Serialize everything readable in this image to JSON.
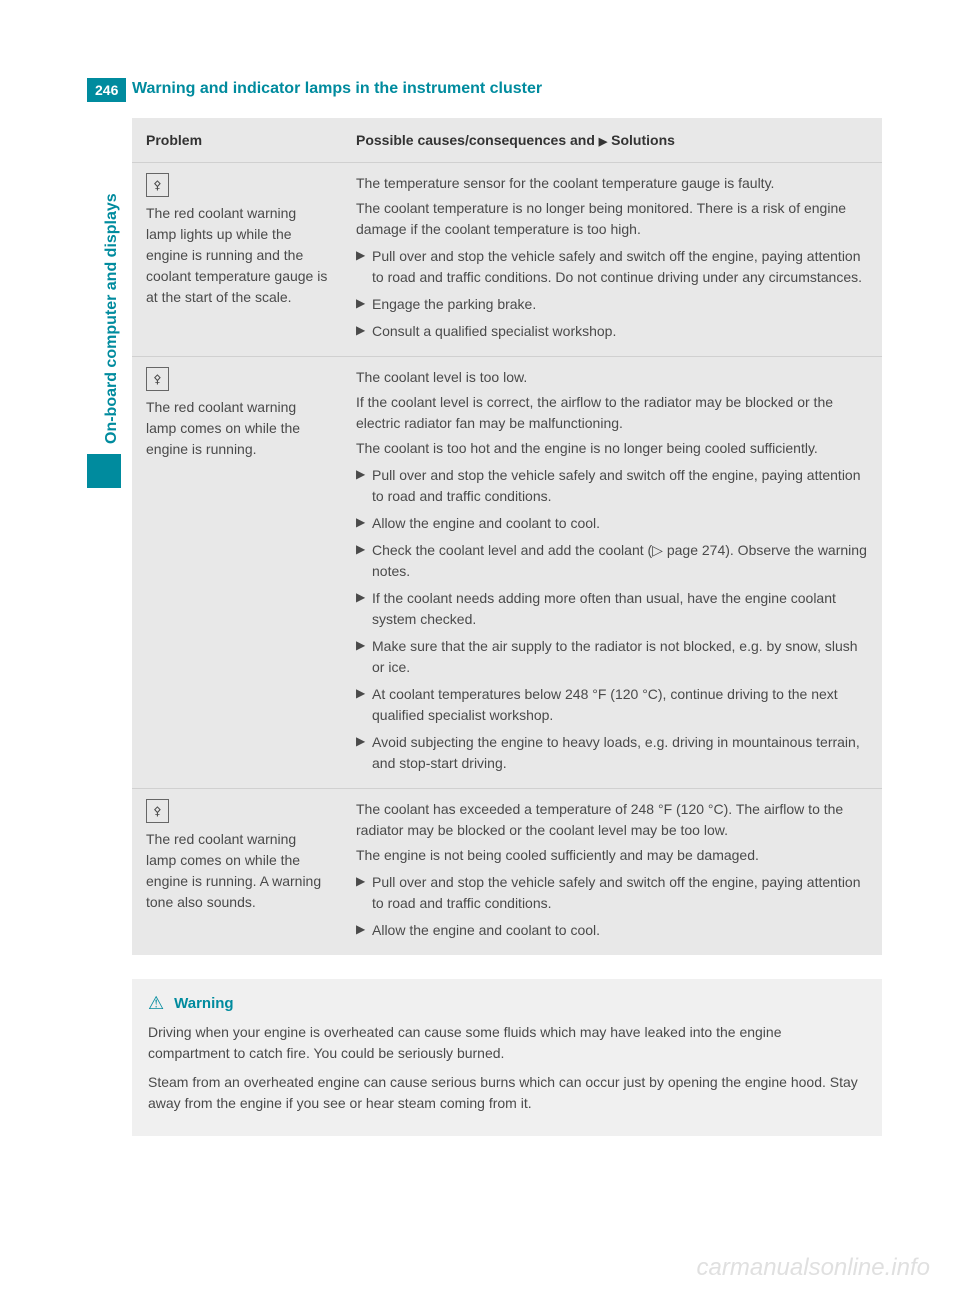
{
  "page_number": "246",
  "header_title": "Warning and indicator lamps in the instrument cluster",
  "side_tab": "On-board computer and displays",
  "watermark": "carmanualsonline.info",
  "table": {
    "header_problem": "Problem",
    "header_solutions_prefix": "Possible causes/consequences and ",
    "header_solutions_suffix": " Solutions",
    "solutions_marker": "▶",
    "rows": [
      {
        "icon_label": "coolant-icon",
        "icon_glyph": "⚴",
        "problem": "The red coolant warning lamp lights up while the engine is running and the coolant temperature gauge is at the start of the scale.",
        "paragraphs": [
          "The temperature sensor for the coolant temperature gauge is faulty.",
          "The coolant temperature is no longer being monitored. There is a risk of engine damage if the coolant temperature is too high."
        ],
        "bullets": [
          "Pull over and stop the vehicle safely and switch off the engine, paying attention to road and traffic conditions. Do not continue driving under any circumstances.",
          "Engage the parking brake.",
          "Consult a qualified specialist workshop."
        ]
      },
      {
        "icon_label": "coolant-icon",
        "icon_glyph": "⚴",
        "problem": "The red coolant warning lamp comes on while the engine is running.",
        "paragraphs": [
          "The coolant level is too low.",
          "If the coolant level is correct, the airflow to the radiator may be blocked or the electric radiator fan may be malfunctioning.",
          "The coolant is too hot and the engine is no longer being cooled sufficiently."
        ],
        "bullets": [
          "Pull over and stop the vehicle safely and switch off the engine, paying attention to road and traffic conditions.",
          "Allow the engine and coolant to cool.",
          "Check the coolant level and add the coolant (▷ page 274). Observe the warning notes.",
          "If the coolant needs adding more often than usual, have the engine coolant system checked.",
          "Make sure that the air supply to the radiator is not blocked, e.g. by snow, slush or ice.",
          "At coolant temperatures below 248 °F (120 °C), continue driving to the next qualified specialist workshop.",
          "Avoid subjecting the engine to heavy loads, e.g. driving in mountainous terrain, and stop-start driving."
        ]
      },
      {
        "icon_label": "coolant-icon",
        "icon_glyph": "⚴",
        "problem": "The red coolant warning lamp comes on while the engine is running. A warning tone also sounds.",
        "paragraphs": [
          "The coolant has exceeded a temperature of 248 °F (120 °C). The airflow to the radiator may be blocked or the coolant level may be too low.",
          "The engine is not being cooled sufficiently and may be damaged."
        ],
        "bullets": [
          "Pull over and stop the vehicle safely and switch off the engine, paying attention to road and traffic conditions.",
          "Allow the engine and coolant to cool."
        ]
      }
    ]
  },
  "warning": {
    "title": "Warning",
    "triangle": "⚠",
    "paragraphs": [
      "Driving when your engine is overheated can cause some fluids which may have leaked into the engine compartment to catch fire. You could be seriously burned.",
      "Steam from an overheated engine can cause serious burns which can occur just by opening the engine hood. Stay away from the engine if you see or hear steam coming from it."
    ]
  },
  "colors": {
    "primary": "#008b9e",
    "table_bg": "#e8e8e8",
    "warning_bg": "#f0f0f0",
    "text": "#4a4a4a"
  }
}
